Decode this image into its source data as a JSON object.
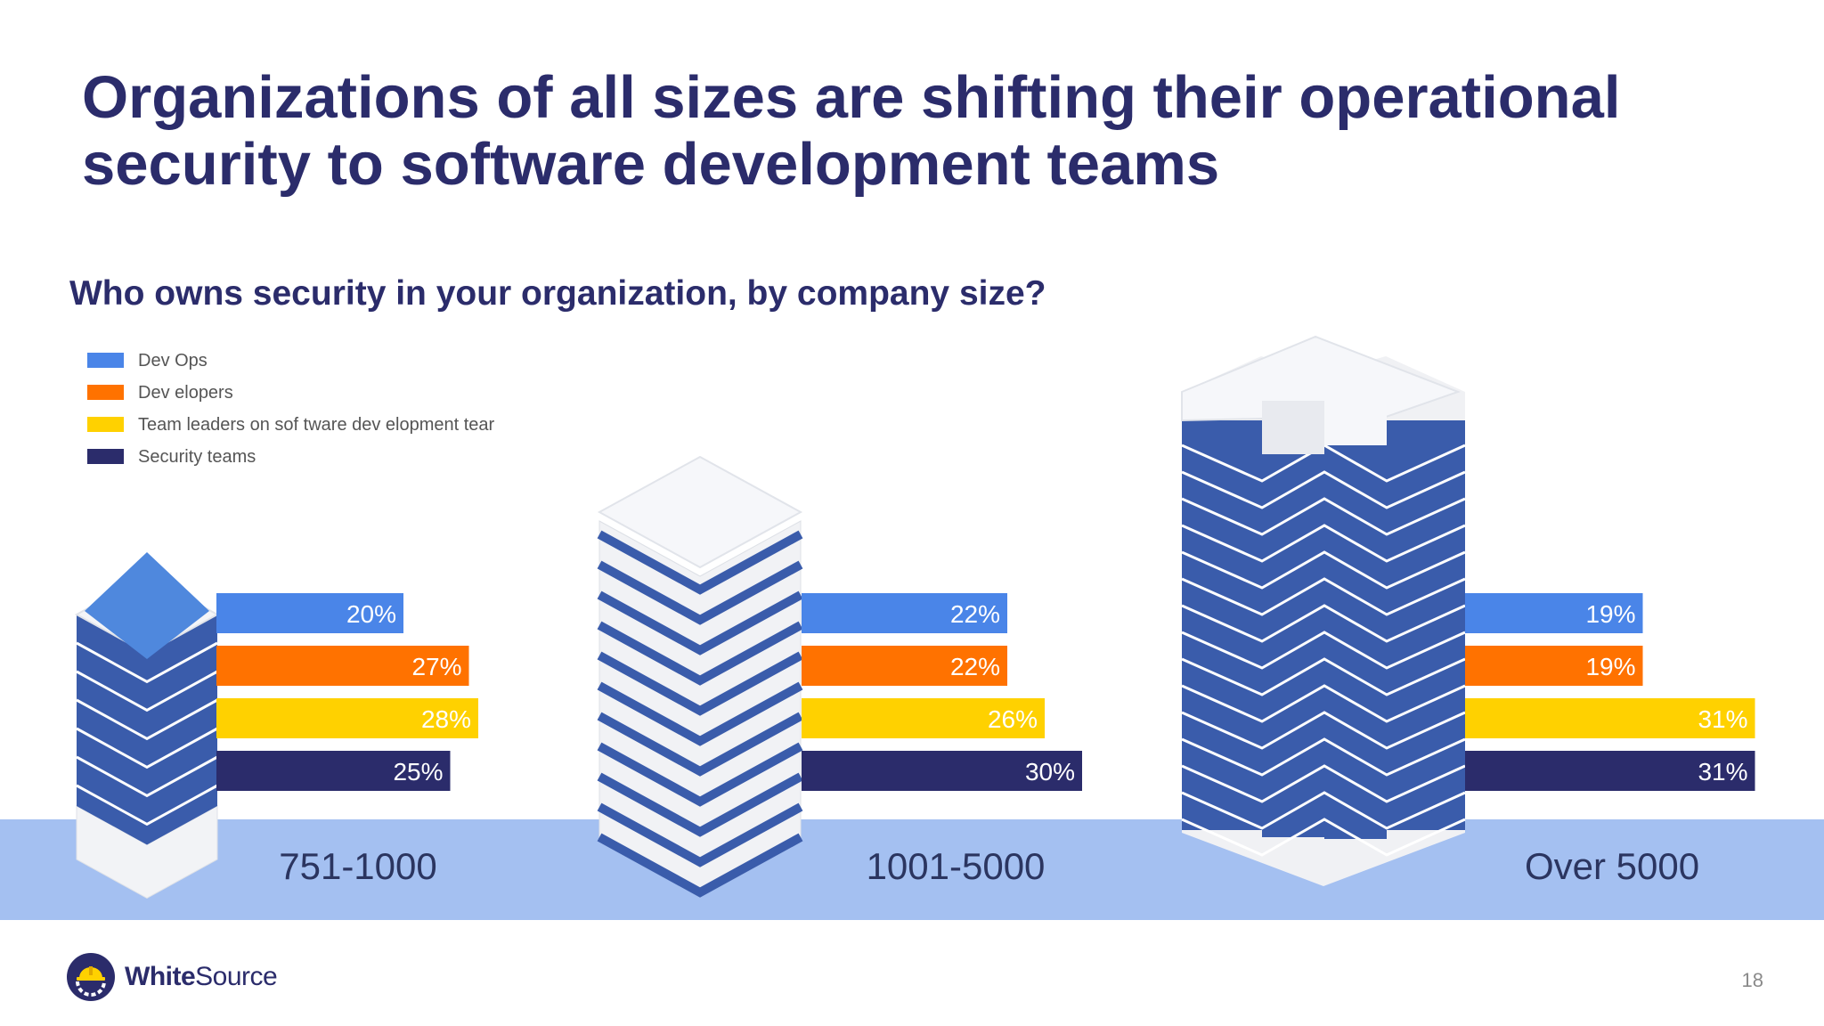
{
  "slide": {
    "title": "Organizations of all sizes are shifting their operational security to software development teams",
    "page_number": "18"
  },
  "brand": {
    "logo_text": "WhiteSource",
    "logo_icon": "hardhat-gear-icon"
  },
  "colors": {
    "devops": "#4a85e8",
    "developers": "#ff7200",
    "team_leaders": "#ffd100",
    "security_teams": "#2b2c6b",
    "title_text": "#2b2c6b",
    "ground_band": "#a4c0f1",
    "building_blue": "#3a5cab"
  },
  "chart_data": {
    "type": "bar",
    "orientation": "horizontal",
    "title": "Who owns security in your organization, by company size?",
    "categories": [
      "751-1000",
      "1001-5000",
      "Over 5000"
    ],
    "series": [
      {
        "name": "Dev Ops",
        "values": [
          20,
          22,
          19
        ],
        "labels": [
          "20%",
          "22%",
          "19%"
        ],
        "color": "#4a85e8"
      },
      {
        "name": "Dev elopers",
        "values": [
          27,
          22,
          19
        ],
        "labels": [
          "27%",
          "22%",
          "19%"
        ],
        "color": "#ff7200"
      },
      {
        "name": "Team leaders on sof tware dev elopment tear",
        "values": [
          28,
          26,
          31
        ],
        "labels": [
          "28%",
          "26%",
          "31%"
        ],
        "color": "#ffd100"
      },
      {
        "name": "Security  teams",
        "values": [
          25,
          30,
          31
        ],
        "labels": [
          "25%",
          "30%",
          "31%"
        ],
        "color": "#2b2c6b"
      }
    ],
    "unit": "%",
    "legend": "top-left",
    "grid": false,
    "decoration": "isometric buildings sized by company size"
  }
}
